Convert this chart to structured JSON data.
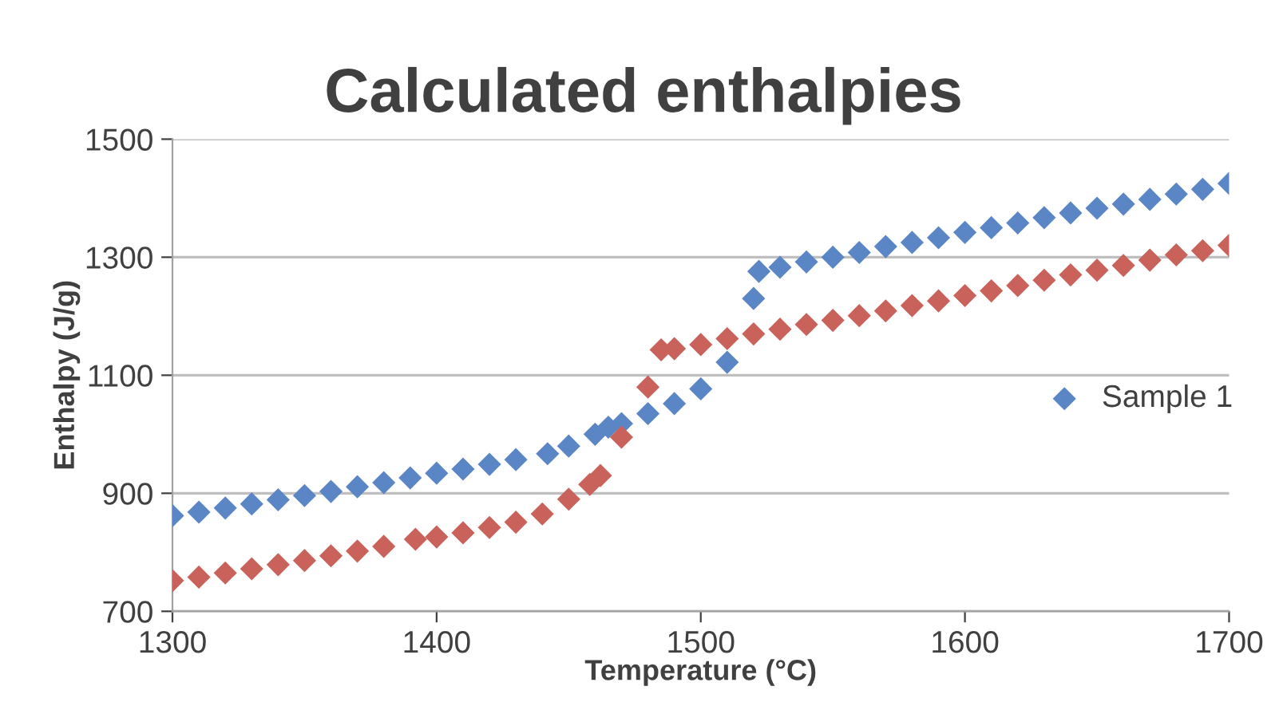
{
  "chart_data": {
    "type": "scatter",
    "title": "Calculated enthalpies",
    "xlabel": "Temperature (°C)",
    "ylabel": "Enthalpy (J/g)",
    "xlim": [
      1300,
      1700
    ],
    "xticks": [
      1300,
      1400,
      1500,
      1600,
      1700
    ],
    "ylim": [
      700,
      1500
    ],
    "yticks": [
      700,
      900,
      1100,
      1300,
      1500
    ],
    "grid": "y",
    "legend": "right",
    "marker": "diamond",
    "series": [
      {
        "name": "Sample 1",
        "color": "#5b86c5",
        "x": [
          1300,
          1310,
          1320,
          1330,
          1340,
          1350,
          1360,
          1370,
          1380,
          1390,
          1400,
          1410,
          1420,
          1430,
          1442,
          1450,
          1460,
          1465,
          1470,
          1480,
          1490,
          1500,
          1510,
          1520,
          1522,
          1530,
          1540,
          1550,
          1560,
          1570,
          1580,
          1590,
          1600,
          1610,
          1620,
          1630,
          1640,
          1650,
          1660,
          1670,
          1680,
          1690,
          1700
        ],
        "values": [
          862,
          868,
          875,
          882,
          889,
          896,
          903,
          911,
          918,
          926,
          934,
          941,
          949,
          957,
          967,
          980,
          1000,
          1012,
          1018,
          1035,
          1052,
          1077,
          1122,
          1230,
          1276,
          1283,
          1292,
          1300,
          1308,
          1318,
          1325,
          1333,
          1342,
          1350,
          1358,
          1367,
          1375,
          1383,
          1390,
          1398,
          1407,
          1415,
          1425
        ]
      },
      {
        "color": "#c9625a",
        "x": [
          1300,
          1310,
          1320,
          1330,
          1340,
          1350,
          1360,
          1370,
          1380,
          1392,
          1400,
          1410,
          1420,
          1430,
          1440,
          1450,
          1458,
          1462,
          1470,
          1480,
          1485,
          1490,
          1500,
          1510,
          1520,
          1530,
          1540,
          1550,
          1560,
          1570,
          1580,
          1590,
          1600,
          1610,
          1620,
          1630,
          1640,
          1650,
          1660,
          1670,
          1680,
          1690,
          1700
        ],
        "values": [
          752,
          758,
          765,
          772,
          779,
          786,
          794,
          802,
          810,
          822,
          826,
          833,
          842,
          851,
          865,
          890,
          915,
          930,
          995,
          1080,
          1143,
          1145,
          1152,
          1162,
          1170,
          1178,
          1186,
          1193,
          1201,
          1209,
          1218,
          1226,
          1235,
          1243,
          1252,
          1261,
          1270,
          1278,
          1286,
          1295,
          1304,
          1311,
          1320
        ]
      }
    ]
  }
}
